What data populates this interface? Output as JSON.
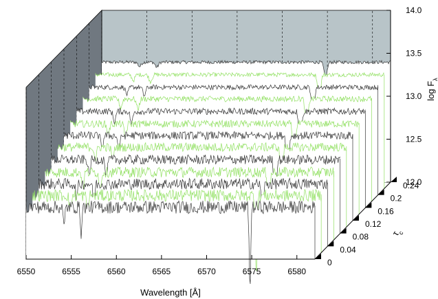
{
  "chart_data": {
    "type": "line",
    "style": "3d-waterfall",
    "xlabel": "Wavelength [Å]",
    "ylabel": "τ",
    "ylabel_subscript": "c",
    "zlabel": "log F",
    "zlabel_subscript": "λ",
    "x_ticks": [
      "6550",
      "6555",
      "6560",
      "6565",
      "6570",
      "6575",
      "6580"
    ],
    "y_ticks": [
      "0",
      "0.04",
      "0.08",
      "0.12",
      "0.16",
      "0.2",
      "0.24"
    ],
    "z_ticks": [
      "12.0",
      "12.5",
      "13.0",
      "13.5",
      "14.0"
    ],
    "xlim": [
      6550,
      6582
    ],
    "ylim": [
      0,
      0.24
    ],
    "zlim": [
      12.0,
      14.0
    ],
    "series_tau": [
      0,
      0.02,
      0.04,
      0.06,
      0.08,
      0.1,
      0.12,
      0.14,
      0.16,
      0.18,
      0.2,
      0.22,
      0.24
    ],
    "series_colors": [
      "#333333",
      "#90e060"
    ],
    "baseline_logF": [
      12.62,
      12.68,
      12.74,
      12.8,
      12.87,
      12.94,
      13.0,
      13.06,
      13.13,
      13.2,
      13.26,
      13.33,
      13.4
    ],
    "absorption_lines": [
      {
        "wavelength": 6554.2,
        "depth": 0.25
      },
      {
        "wavelength": 6556.1,
        "depth": 0.3
      },
      {
        "wavelength": 6574.8,
        "depth": 0.95
      }
    ],
    "grid": true,
    "colors": {
      "wall": "#707880",
      "back_wall": "#b8c4c8",
      "frame": "#000000"
    }
  }
}
